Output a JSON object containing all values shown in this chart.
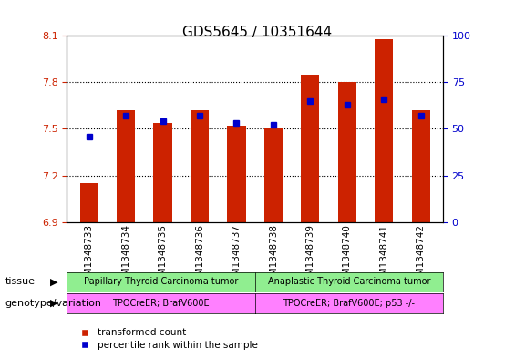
{
  "title": "GDS5645 / 10351644",
  "samples": [
    "GSM1348733",
    "GSM1348734",
    "GSM1348735",
    "GSM1348736",
    "GSM1348737",
    "GSM1348738",
    "GSM1348739",
    "GSM1348740",
    "GSM1348741",
    "GSM1348742"
  ],
  "transformed_count": [
    7.15,
    7.62,
    7.54,
    7.62,
    7.52,
    7.5,
    7.85,
    7.8,
    8.08,
    7.62
  ],
  "percentile_rank": [
    46,
    57,
    54,
    57,
    53,
    52,
    65,
    63,
    66,
    57
  ],
  "ylim_left": [
    6.9,
    8.1
  ],
  "ylim_right": [
    0,
    100
  ],
  "yticks_left": [
    6.9,
    7.2,
    7.5,
    7.8,
    8.1
  ],
  "yticks_right": [
    0,
    25,
    50,
    75,
    100
  ],
  "bar_color": "#cc2200",
  "dot_color": "#0000cc",
  "tissue_labels": [
    "Papillary Thyroid Carcinoma tumor",
    "Anaplastic Thyroid Carcinoma tumor"
  ],
  "tissue_groups": [
    5,
    5
  ],
  "tissue_color": "#90ee90",
  "genotype_labels": [
    "TPOCreER; BrafV600E",
    "TPOCreER; BrafV600E; p53 -/-"
  ],
  "genotype_color": "#ff80ff",
  "legend_red_label": "transformed count",
  "legend_blue_label": "percentile rank within the sample",
  "bg_color": "#ffffff",
  "plot_bg_color": "#ffffff",
  "grid_color": "#000000",
  "bar_width": 0.5,
  "tick_label_color_left": "#cc2200",
  "tick_label_color_right": "#0000cc"
}
